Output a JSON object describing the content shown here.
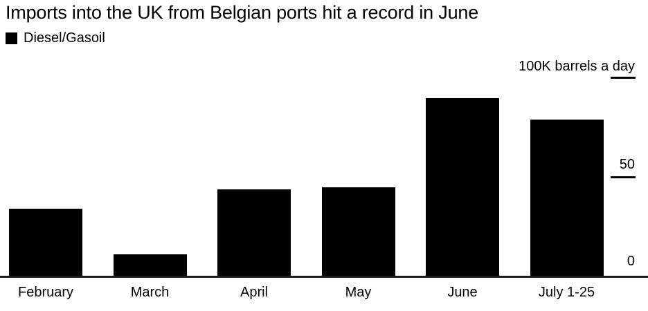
{
  "chart_data": {
    "type": "bar",
    "title": "Imports into the UK from Belgian ports hit a record in June",
    "legend": [
      {
        "label": "Diesel/Gasoil",
        "color": "#000000"
      }
    ],
    "legend_position": "top-left",
    "unit_label": "100K barrels a day",
    "categories": [
      "February",
      "March",
      "April",
      "May",
      "June",
      "July 1-25"
    ],
    "series": [
      {
        "name": "Diesel/Gasoil",
        "values": [
          34,
          11,
          44,
          45,
          90,
          79
        ]
      }
    ],
    "values": [
      34,
      11,
      44,
      45,
      90,
      79
    ],
    "ylabel": "100K barrels a day",
    "ylim": [
      0,
      100
    ],
    "yticks": [
      0,
      50,
      100
    ],
    "grid": false,
    "bar_color": "#000000",
    "axis_color": "#1a1a1a",
    "background_color": "#ffffff"
  }
}
